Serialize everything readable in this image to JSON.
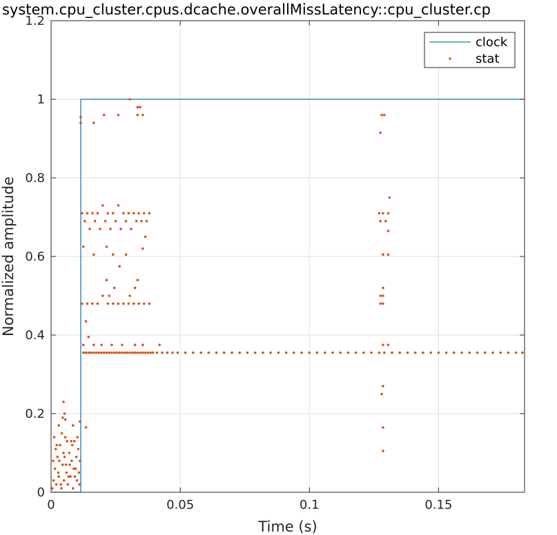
{
  "chart_data": {
    "type": "scatter",
    "title": "system.cpu_cluster.cpus.dcache.overallMissLatency::cpu_cluster.cp",
    "xlabel": "Time (s)",
    "ylabel": "Normalized amplitude",
    "xlim": [
      0,
      0.1833
    ],
    "ylim": [
      0,
      1.2
    ],
    "xticks": [
      0,
      0.05,
      0.1,
      0.15
    ],
    "xtick_labels": [
      "0",
      "0.05",
      "0.1",
      "0.15"
    ],
    "yticks": [
      0,
      0.2,
      0.4,
      0.6,
      0.8,
      1,
      1.2
    ],
    "ytick_labels": [
      "0",
      "0.2",
      "0.4",
      "0.6",
      "0.8",
      "1",
      "1.2"
    ],
    "grid": true,
    "legend_position": "top-right",
    "colors": {
      "clock": "#0072BD",
      "stat": "#D95319",
      "legend_clock_line": "#188A80"
    },
    "series": [
      {
        "name": "clock",
        "type": "line",
        "x": [
          0,
          0.0115,
          0.0115,
          0.1833
        ],
        "y": [
          0,
          0,
          1,
          1
        ]
      },
      {
        "name": "stat",
        "type": "scatter",
        "points": [
          [
            0.0005,
            0.01
          ],
          [
            0.001,
            0.03
          ],
          [
            0.0015,
            0.06
          ],
          [
            0.002,
            0.02
          ],
          [
            0.0025,
            0.09
          ],
          [
            0.003,
            0.04
          ],
          [
            0.0035,
            0.12
          ],
          [
            0.004,
            0.01
          ],
          [
            0.0045,
            0.07
          ],
          [
            0.005,
            0.03
          ],
          [
            0.0055,
            0.14
          ],
          [
            0.006,
            0.05
          ],
          [
            0.0065,
            0.02
          ],
          [
            0.007,
            0.1
          ],
          [
            0.0075,
            0.04
          ],
          [
            0.008,
            0.08
          ],
          [
            0.0085,
            0.01
          ],
          [
            0.009,
            0.13
          ],
          [
            0.0095,
            0.06
          ],
          [
            0.01,
            0.03
          ],
          [
            0.0105,
            0.11
          ],
          [
            0.011,
            0.02
          ],
          [
            0.0008,
            0.08
          ],
          [
            0.0018,
            0.11
          ],
          [
            0.0028,
            0.05
          ],
          [
            0.0038,
            0.02
          ],
          [
            0.0048,
            0.1
          ],
          [
            0.0058,
            0.07
          ],
          [
            0.0068,
            0.04
          ],
          [
            0.0078,
            0.13
          ],
          [
            0.0088,
            0.06
          ],
          [
            0.0098,
            0.09
          ],
          [
            0.0108,
            0.05
          ],
          [
            0.0012,
            0.14
          ],
          [
            0.0022,
            0.12
          ],
          [
            0.0032,
            0.08
          ],
          [
            0.0042,
            0.15
          ],
          [
            0.0052,
            0.09
          ],
          [
            0.0062,
            0.13
          ],
          [
            0.0072,
            0.07
          ],
          [
            0.0082,
            0.12
          ],
          [
            0.0092,
            0.04
          ],
          [
            0.0102,
            0.14
          ],
          [
            0.0112,
            0.08
          ],
          [
            0.003,
            0.17
          ],
          [
            0.0045,
            0.19
          ],
          [
            0.0048,
            0.23
          ],
          [
            0.0052,
            0.2
          ],
          [
            0.0055,
            0.185
          ],
          [
            0.0085,
            0.17
          ],
          [
            0.0112,
            0.18
          ],
          [
            0.0135,
            0.165
          ],
          [
            0.0115,
            0.955
          ],
          [
            0.0115,
            0.94
          ],
          [
            0.0165,
            0.94
          ],
          [
            0.0205,
            0.96
          ],
          [
            0.026,
            0.96
          ],
          [
            0.0305,
            1.0
          ],
          [
            0.0335,
            0.98
          ],
          [
            0.0345,
            0.98
          ],
          [
            0.0335,
            0.96
          ],
          [
            0.0355,
            0.96
          ],
          [
            0.012,
            0.71
          ],
          [
            0.014,
            0.71
          ],
          [
            0.016,
            0.71
          ],
          [
            0.018,
            0.71
          ],
          [
            0.02,
            0.73
          ],
          [
            0.022,
            0.71
          ],
          [
            0.024,
            0.71
          ],
          [
            0.026,
            0.73
          ],
          [
            0.028,
            0.71
          ],
          [
            0.03,
            0.71
          ],
          [
            0.032,
            0.71
          ],
          [
            0.034,
            0.71
          ],
          [
            0.036,
            0.71
          ],
          [
            0.038,
            0.71
          ],
          [
            0.013,
            0.69
          ],
          [
            0.017,
            0.69
          ],
          [
            0.021,
            0.69
          ],
          [
            0.025,
            0.69
          ],
          [
            0.029,
            0.69
          ],
          [
            0.033,
            0.69
          ],
          [
            0.035,
            0.69
          ],
          [
            0.037,
            0.69
          ],
          [
            0.015,
            0.67
          ],
          [
            0.019,
            0.67
          ],
          [
            0.023,
            0.67
          ],
          [
            0.027,
            0.67
          ],
          [
            0.031,
            0.67
          ],
          [
            0.0365,
            0.65
          ],
          [
            0.0125,
            0.625
          ],
          [
            0.0165,
            0.605
          ],
          [
            0.0215,
            0.625
          ],
          [
            0.024,
            0.605
          ],
          [
            0.0265,
            0.575
          ],
          [
            0.029,
            0.605
          ],
          [
            0.0355,
            0.62
          ],
          [
            0.0215,
            0.54
          ],
          [
            0.0245,
            0.52
          ],
          [
            0.0335,
            0.54
          ],
          [
            0.0325,
            0.52
          ],
          [
            0.012,
            0.48
          ],
          [
            0.014,
            0.48
          ],
          [
            0.016,
            0.48
          ],
          [
            0.018,
            0.48
          ],
          [
            0.02,
            0.5
          ],
          [
            0.022,
            0.48
          ],
          [
            0.024,
            0.48
          ],
          [
            0.026,
            0.48
          ],
          [
            0.028,
            0.48
          ],
          [
            0.03,
            0.48
          ],
          [
            0.032,
            0.48
          ],
          [
            0.034,
            0.48
          ],
          [
            0.036,
            0.48
          ],
          [
            0.038,
            0.48
          ],
          [
            0.0225,
            0.5
          ],
          [
            0.0305,
            0.5
          ],
          [
            0.0135,
            0.435
          ],
          [
            0.0125,
            0.375
          ],
          [
            0.0145,
            0.395
          ],
          [
            0.0165,
            0.375
          ],
          [
            0.0195,
            0.375
          ],
          [
            0.0235,
            0.375
          ],
          [
            0.0275,
            0.375
          ],
          [
            0.0325,
            0.375
          ],
          [
            0.0355,
            0.375
          ],
          [
            0.042,
            0.375
          ],
          [
            0.0125,
            0.355
          ],
          [
            0.0135,
            0.355
          ],
          [
            0.0145,
            0.355
          ],
          [
            0.0155,
            0.355
          ],
          [
            0.0165,
            0.355
          ],
          [
            0.0175,
            0.355
          ],
          [
            0.0185,
            0.355
          ],
          [
            0.0195,
            0.355
          ],
          [
            0.0205,
            0.355
          ],
          [
            0.0215,
            0.355
          ],
          [
            0.0225,
            0.355
          ],
          [
            0.0235,
            0.355
          ],
          [
            0.0245,
            0.355
          ],
          [
            0.0255,
            0.355
          ],
          [
            0.0265,
            0.355
          ],
          [
            0.0275,
            0.355
          ],
          [
            0.0285,
            0.355
          ],
          [
            0.0295,
            0.355
          ],
          [
            0.0305,
            0.355
          ],
          [
            0.0315,
            0.355
          ],
          [
            0.0325,
            0.355
          ],
          [
            0.0335,
            0.355
          ],
          [
            0.0345,
            0.355
          ],
          [
            0.0355,
            0.355
          ],
          [
            0.0365,
            0.355
          ],
          [
            0.0375,
            0.355
          ],
          [
            0.0385,
            0.355
          ],
          [
            0.0395,
            0.355
          ],
          [
            0.041,
            0.355
          ],
          [
            0.043,
            0.355
          ],
          [
            0.045,
            0.355
          ],
          [
            0.047,
            0.355
          ],
          [
            0.049,
            0.355
          ],
          [
            0.052,
            0.355
          ],
          [
            0.055,
            0.355
          ],
          [
            0.058,
            0.355
          ],
          [
            0.061,
            0.355
          ],
          [
            0.064,
            0.355
          ],
          [
            0.067,
            0.355
          ],
          [
            0.07,
            0.355
          ],
          [
            0.073,
            0.355
          ],
          [
            0.076,
            0.355
          ],
          [
            0.079,
            0.355
          ],
          [
            0.082,
            0.355
          ],
          [
            0.085,
            0.355
          ],
          [
            0.088,
            0.355
          ],
          [
            0.091,
            0.355
          ],
          [
            0.094,
            0.355
          ],
          [
            0.097,
            0.355
          ],
          [
            0.1,
            0.355
          ],
          [
            0.103,
            0.355
          ],
          [
            0.106,
            0.355
          ],
          [
            0.109,
            0.355
          ],
          [
            0.112,
            0.355
          ],
          [
            0.115,
            0.355
          ],
          [
            0.118,
            0.355
          ],
          [
            0.121,
            0.355
          ],
          [
            0.124,
            0.355
          ],
          [
            0.127,
            0.355
          ],
          [
            0.129,
            0.355
          ],
          [
            0.132,
            0.355
          ],
          [
            0.135,
            0.355
          ],
          [
            0.138,
            0.355
          ],
          [
            0.141,
            0.355
          ],
          [
            0.144,
            0.355
          ],
          [
            0.147,
            0.355
          ],
          [
            0.15,
            0.355
          ],
          [
            0.153,
            0.355
          ],
          [
            0.156,
            0.355
          ],
          [
            0.159,
            0.355
          ],
          [
            0.162,
            0.355
          ],
          [
            0.165,
            0.355
          ],
          [
            0.168,
            0.355
          ],
          [
            0.171,
            0.355
          ],
          [
            0.174,
            0.355
          ],
          [
            0.177,
            0.355
          ],
          [
            0.18,
            0.355
          ],
          [
            0.1825,
            0.355
          ],
          [
            0.128,
            0.96
          ],
          [
            0.129,
            0.96
          ],
          [
            0.1275,
            0.915
          ],
          [
            0.127,
            0.71
          ],
          [
            0.1285,
            0.71
          ],
          [
            0.1305,
            0.71
          ],
          [
            0.131,
            0.75
          ],
          [
            0.1275,
            0.69
          ],
          [
            0.1295,
            0.69
          ],
          [
            0.1305,
            0.665
          ],
          [
            0.1305,
            0.605
          ],
          [
            0.1285,
            0.605
          ],
          [
            0.1285,
            0.52
          ],
          [
            0.1275,
            0.5
          ],
          [
            0.1285,
            0.5
          ],
          [
            0.1275,
            0.48
          ],
          [
            0.1285,
            0.48
          ],
          [
            0.1285,
            0.375
          ],
          [
            0.1305,
            0.375
          ],
          [
            0.1285,
            0.27
          ],
          [
            0.128,
            0.25
          ],
          [
            0.1285,
            0.165
          ],
          [
            0.1285,
            0.105
          ]
        ]
      }
    ]
  }
}
